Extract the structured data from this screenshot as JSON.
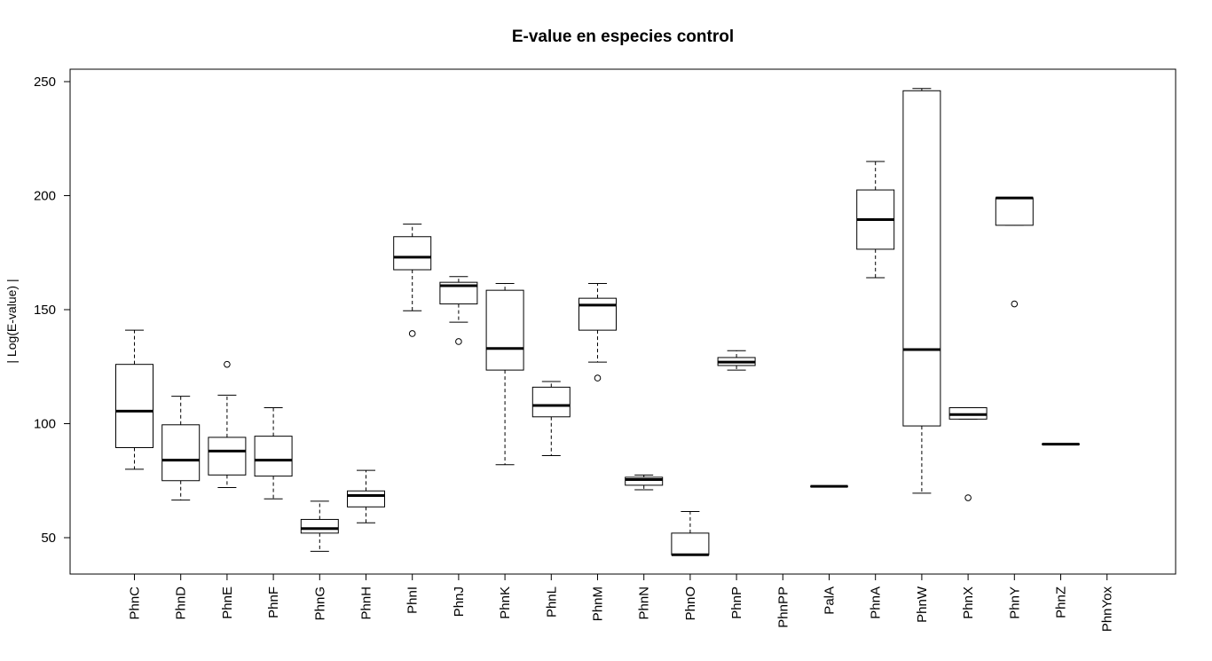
{
  "chart_data": {
    "type": "boxplot",
    "title": "E-value en especies control",
    "xlabel": "",
    "ylabel": "| Log(E-value) |",
    "ylim": [
      34,
      255
    ],
    "yticks": [
      50,
      100,
      150,
      200,
      250
    ],
    "grid": false,
    "categories": [
      "PhnC",
      "PhnD",
      "PhnE",
      "PhnF",
      "PhnG",
      "PhnH",
      "PhnI",
      "PhnJ",
      "PhnK",
      "PhnL",
      "PhnM",
      "PhnN",
      "PhnO",
      "PhnP",
      "PhnPP",
      "PalA",
      "PhnA",
      "PhnW",
      "PhnX",
      "PhnY",
      "PhnZ",
      "PhnYox"
    ],
    "boxes": [
      {
        "category": "PhnC",
        "whisker_low": 80,
        "q1": 89.5,
        "median": 105.5,
        "q3": 126,
        "whisker_high": 141,
        "outliers": []
      },
      {
        "category": "PhnD",
        "whisker_low": 66.5,
        "q1": 75,
        "median": 84,
        "q3": 99.5,
        "whisker_high": 112,
        "outliers": []
      },
      {
        "category": "PhnE",
        "whisker_low": 72,
        "q1": 77.5,
        "median": 88,
        "q3": 94,
        "whisker_high": 112.5,
        "outliers": [
          126
        ]
      },
      {
        "category": "PhnF",
        "whisker_low": 67,
        "q1": 77,
        "median": 84,
        "q3": 94.5,
        "whisker_high": 107,
        "outliers": []
      },
      {
        "category": "PhnG",
        "whisker_low": 44,
        "q1": 52,
        "median": 54,
        "q3": 58,
        "whisker_high": 66,
        "outliers": []
      },
      {
        "category": "PhnH",
        "whisker_low": 56.5,
        "q1": 63.5,
        "median": 68.5,
        "q3": 70.5,
        "whisker_high": 79.5,
        "outliers": []
      },
      {
        "category": "PhnI",
        "whisker_low": 149.5,
        "q1": 167.5,
        "median": 173,
        "q3": 182,
        "whisker_high": 187.5,
        "outliers": [
          139.5
        ]
      },
      {
        "category": "PhnJ",
        "whisker_low": 144.5,
        "q1": 152.5,
        "median": 160.5,
        "q3": 162,
        "whisker_high": 164.5,
        "outliers": [
          136
        ]
      },
      {
        "category": "PhnK",
        "whisker_low": 82,
        "q1": 123.5,
        "median": 133,
        "q3": 158.5,
        "whisker_high": 161.5,
        "outliers": []
      },
      {
        "category": "PhnL",
        "whisker_low": 86,
        "q1": 103,
        "median": 108,
        "q3": 116,
        "whisker_high": 118.5,
        "outliers": []
      },
      {
        "category": "PhnM",
        "whisker_low": 127,
        "q1": 141,
        "median": 152,
        "q3": 155,
        "whisker_high": 161.5,
        "outliers": [
          120
        ]
      },
      {
        "category": "PhnN",
        "whisker_low": 71,
        "q1": 73,
        "median": 75.5,
        "q3": 76.5,
        "whisker_high": 77.5,
        "outliers": []
      },
      {
        "category": "PhnO",
        "whisker_low": 42.5,
        "q1": 42.5,
        "median": 42.5,
        "q3": 52,
        "whisker_high": 61.5,
        "outliers": []
      },
      {
        "category": "PhnP",
        "whisker_low": 123.5,
        "q1": 125.5,
        "median": 127,
        "q3": 129,
        "whisker_high": 132,
        "outliers": []
      },
      {
        "category": "PhnPP",
        "empty": true
      },
      {
        "category": "PalA",
        "whisker_low": 72.5,
        "q1": 72.5,
        "median": 72.5,
        "q3": 72.5,
        "whisker_high": 72.5,
        "outliers": []
      },
      {
        "category": "PhnA",
        "whisker_low": 164,
        "q1": 176.5,
        "median": 189.5,
        "q3": 202.5,
        "whisker_high": 215,
        "outliers": []
      },
      {
        "category": "PhnW",
        "whisker_low": 69.5,
        "q1": 99,
        "median": 132.5,
        "q3": 246,
        "whisker_high": 247,
        "outliers": []
      },
      {
        "category": "PhnX",
        "whisker_low": 102,
        "q1": 102,
        "median": 104,
        "q3": 107,
        "whisker_high": 107,
        "outliers": [
          67.5
        ]
      },
      {
        "category": "PhnY",
        "whisker_low": 187,
        "q1": 187,
        "median": 199,
        "q3": 199,
        "whisker_high": 199,
        "outliers": [
          152.5
        ]
      },
      {
        "category": "PhnZ",
        "whisker_low": 91,
        "q1": 91,
        "median": 91,
        "q3": 91,
        "whisker_high": 91,
        "outliers": []
      },
      {
        "category": "PhnYox",
        "empty": true
      }
    ]
  }
}
